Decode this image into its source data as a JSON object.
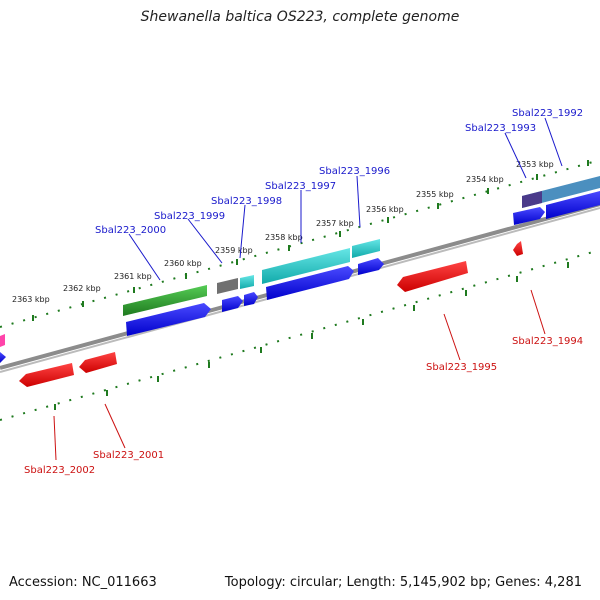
{
  "title": "Shewanella baltica OS223, complete genome",
  "footer": {
    "accession": "Accession: NC_011663",
    "summary": "Topology: circular; Length: 5,145,902 bp; Genes: 4,281"
  },
  "kbp_labels": [
    "2353 kbp",
    "2354 kbp",
    "2355 kbp",
    "2356 kbp",
    "2357 kbp",
    "2358 kbp",
    "2359 kbp",
    "2360 kbp",
    "2361 kbp",
    "2362 kbp",
    "2363 kbp"
  ],
  "gene_labels_top": [
    "Sbal223_1992",
    "Sbal223_1993",
    "Sbal223_1996",
    "Sbal223_1997",
    "Sbal223_1998",
    "Sbal223_1999",
    "Sbal223_2000"
  ],
  "gene_labels_bottom": [
    "Sbal223_1994",
    "Sbal223_1995",
    "Sbal223_2001",
    "Sbal223_2002"
  ],
  "colors": {
    "backbone": "#808080",
    "ticks": "#1f7a1f",
    "forward_gene": "#0000ee",
    "reverse_gene": "#ee0000",
    "cyan_feature": "#22cccc",
    "green_feature": "#33aa33"
  }
}
